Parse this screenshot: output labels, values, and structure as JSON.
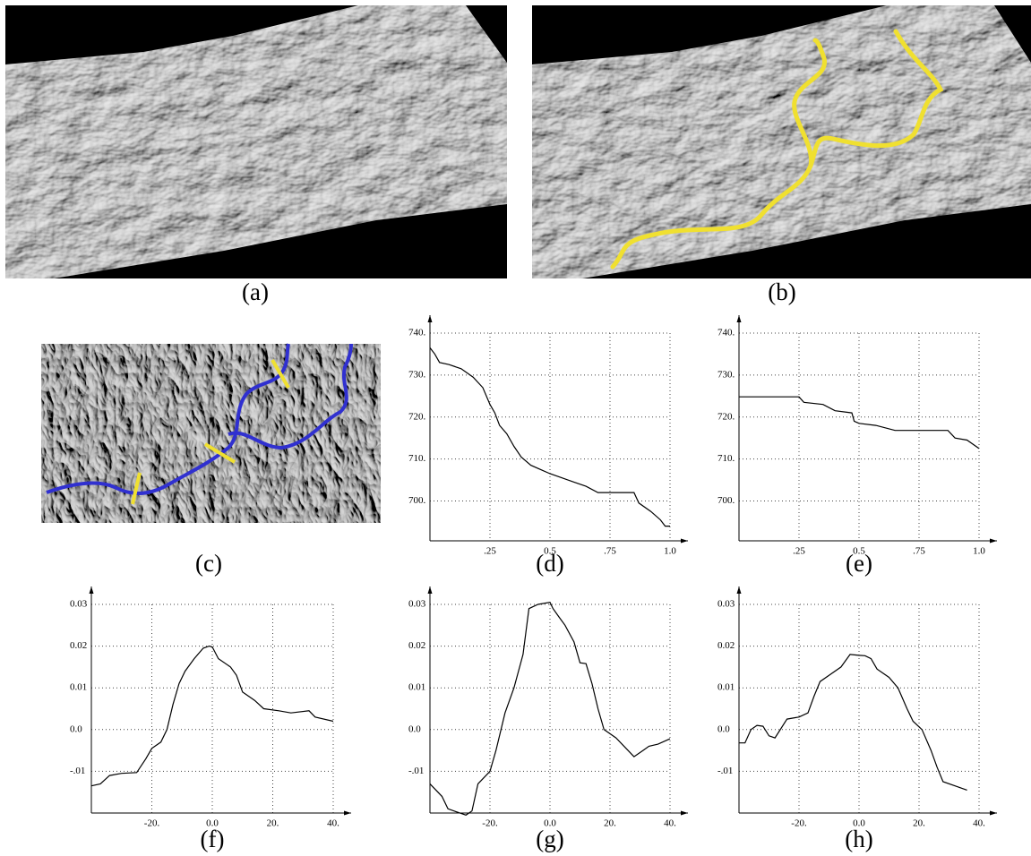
{
  "image_panels": [
    {
      "caption": "(a)"
    },
    {
      "caption": "(b)"
    },
    {
      "caption": "(c)"
    }
  ],
  "chart_data": [
    {
      "type": "line",
      "caption": "(d)",
      "color": "#000000",
      "grid": true,
      "x": [
        0,
        0.02,
        0.04,
        0.08,
        0.13,
        0.18,
        0.22,
        0.25,
        0.27,
        0.29,
        0.32,
        0.35,
        0.38,
        0.42,
        0.46,
        0.5,
        0.55,
        0.6,
        0.65,
        0.7,
        0.8,
        0.85,
        0.87,
        0.92,
        0.96,
        0.98,
        1.0
      ],
      "values": [
        736.5,
        735,
        733,
        732.5,
        731.5,
        729.5,
        727,
        723,
        721,
        718,
        716,
        713,
        710.5,
        708.5,
        707.5,
        706.5,
        705.5,
        704.5,
        703.5,
        702,
        702,
        702,
        699.5,
        697.5,
        695.5,
        694,
        694
      ],
      "xlim": [
        0,
        1
      ],
      "ylim": [
        690.5,
        740
      ],
      "xticks": [
        {
          "value": 0.25,
          "label": ".25"
        },
        {
          "value": 0.5,
          "label": "0.5"
        },
        {
          "value": 0.75,
          "label": ".75"
        },
        {
          "value": 1,
          "label": "1.0"
        }
      ],
      "yticks": [
        {
          "value": 700,
          "label": "700."
        },
        {
          "value": 710,
          "label": "710."
        },
        {
          "value": 720,
          "label": "720."
        },
        {
          "value": 730,
          "label": "730."
        },
        {
          "value": 740,
          "label": "740."
        }
      ]
    },
    {
      "type": "line",
      "caption": "(e)",
      "color": "#000000",
      "grid": true,
      "x": [
        0,
        0.25,
        0.27,
        0.35,
        0.4,
        0.47,
        0.48,
        0.5,
        0.57,
        0.65,
        0.87,
        0.9,
        0.95,
        1.0
      ],
      "values": [
        724.8,
        724.8,
        723.5,
        723,
        721.5,
        721,
        719,
        718.5,
        718,
        716.8,
        716.8,
        715,
        714.5,
        712.5
      ],
      "xlim": [
        0,
        1
      ],
      "ylim": [
        690.5,
        740
      ],
      "xticks": [
        {
          "value": 0.25,
          "label": ".25"
        },
        {
          "value": 0.5,
          "label": "0.5"
        },
        {
          "value": 0.75,
          "label": ".75"
        },
        {
          "value": 1,
          "label": "1.0"
        }
      ],
      "yticks": [
        {
          "value": 700,
          "label": "700."
        },
        {
          "value": 710,
          "label": "710."
        },
        {
          "value": 720,
          "label": "720."
        },
        {
          "value": 730,
          "label": "730."
        },
        {
          "value": 740,
          "label": "740."
        }
      ]
    },
    {
      "type": "line",
      "caption": "(f)",
      "color": "#000000",
      "grid": true,
      "x": [
        -40,
        -37,
        -34,
        -30,
        -25,
        -22,
        -20,
        -17,
        -15,
        -13,
        -11,
        -9,
        -6,
        -3,
        -1,
        0,
        2,
        6,
        8,
        10,
        14,
        17,
        22,
        26,
        32,
        34,
        40
      ],
      "values": [
        -0.0135,
        -0.013,
        -0.011,
        -0.0105,
        -0.0103,
        -0.007,
        -0.0045,
        -0.003,
        0,
        0.006,
        0.011,
        0.014,
        0.017,
        0.0195,
        0.02,
        0.0198,
        0.017,
        0.015,
        0.013,
        0.009,
        0.007,
        0.005,
        0.0045,
        0.004,
        0.0045,
        0.003,
        0.002
      ],
      "xlim": [
        -40,
        40
      ],
      "ylim": [
        -0.02,
        0.03
      ],
      "xticks": [
        {
          "value": -20,
          "label": "-20."
        },
        {
          "value": 0,
          "label": "0.0"
        },
        {
          "value": 20,
          "label": "20."
        },
        {
          "value": 40,
          "label": "40."
        }
      ],
      "yticks": [
        {
          "value": -0.01,
          "label": "-.01"
        },
        {
          "value": 0,
          "label": "0.0"
        },
        0.01,
        0.02,
        0.03
      ]
    },
    {
      "type": "line",
      "caption": "(g)",
      "color": "#000000",
      "grid": true,
      "x": [
        -40,
        -36,
        -34,
        -32,
        -28,
        -26,
        -24,
        -20,
        -18,
        -15,
        -12,
        -9,
        -7,
        -4,
        0,
        1,
        3,
        5,
        8,
        10,
        12,
        14,
        16,
        18,
        22,
        28,
        31,
        33,
        36,
        40
      ],
      "values": [
        -0.013,
        -0.016,
        -0.019,
        -0.0195,
        -0.0205,
        -0.0195,
        -0.013,
        -0.01,
        -0.005,
        0.004,
        0.01,
        0.018,
        0.029,
        0.03,
        0.0305,
        0.029,
        0.027,
        0.025,
        0.021,
        0.016,
        0.0158,
        0.011,
        0.005,
        0,
        -0.002,
        -0.0065,
        -0.005,
        -0.004,
        -0.0035,
        -0.0022
      ],
      "xlim": [
        -40,
        40
      ],
      "ylim": [
        -0.02,
        0.03
      ],
      "xticks": [
        {
          "value": -20,
          "label": "-20."
        },
        {
          "value": 0,
          "label": "0.0"
        },
        {
          "value": 20,
          "label": "20."
        },
        {
          "value": 40,
          "label": "40."
        }
      ],
      "yticks": [
        {
          "value": -0.01,
          "label": "-.01"
        },
        {
          "value": 0,
          "label": "0.0"
        },
        0.01,
        0.02,
        0.03
      ]
    },
    {
      "type": "line",
      "caption": "(h)",
      "color": "#000000",
      "grid": true,
      "x": [
        -40,
        -38,
        -36,
        -34,
        -32,
        -30,
        -28,
        -24,
        -20,
        -17,
        -15,
        -13,
        -10,
        -6,
        -3,
        0,
        2,
        4,
        6,
        10,
        13,
        16,
        18,
        21,
        24,
        26,
        28,
        32,
        36
      ],
      "values": [
        -0.0032,
        -0.0032,
        0,
        0.001,
        0.0008,
        -0.0015,
        -0.002,
        0.0025,
        0.003,
        0.004,
        0.008,
        0.0115,
        0.013,
        0.015,
        0.018,
        0.0178,
        0.0177,
        0.017,
        0.0145,
        0.0125,
        0.01,
        0.005,
        0.002,
        0,
        -0.005,
        -0.009,
        -0.0125,
        -0.0135,
        -0.0145
      ],
      "xlim": [
        -40,
        40
      ],
      "ylim": [
        -0.02,
        0.03
      ],
      "xticks": [
        {
          "value": -20,
          "label": "-20."
        },
        {
          "value": 0,
          "label": "0.0"
        },
        {
          "value": 20,
          "label": "20."
        },
        {
          "value": 40,
          "label": "40."
        }
      ],
      "yticks": [
        {
          "value": -0.01,
          "label": "-.01"
        },
        {
          "value": 0,
          "label": "0.0"
        },
        0.01,
        0.02,
        0.03
      ]
    }
  ]
}
